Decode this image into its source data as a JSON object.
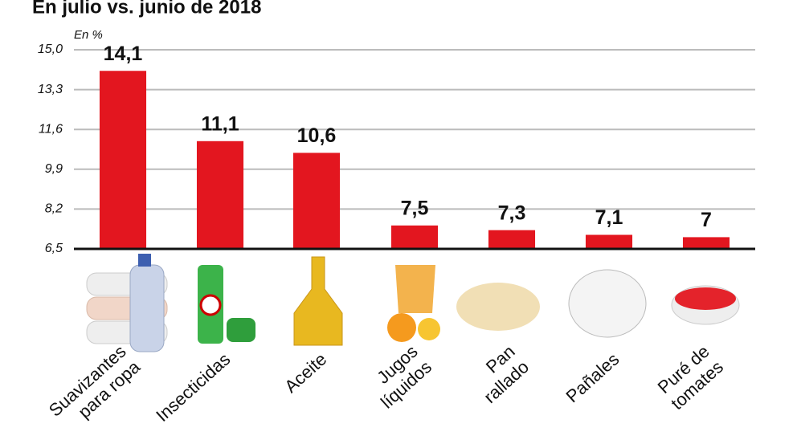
{
  "chart_data": {
    "type": "bar",
    "title": "En julio vs. junio de 2018",
    "y_label": "En %",
    "categories": [
      "Suavizantes\npara ropa",
      "Insecticidas",
      "Aceite",
      "Jugos\nlíquidos",
      "Pan\nrallado",
      "Pañales",
      "Puré de\ntomates"
    ],
    "values": [
      14.1,
      11.1,
      10.6,
      7.5,
      7.3,
      7.1,
      7
    ],
    "value_labels": [
      "14,1",
      "11,1",
      "10,6",
      "7,5",
      "7,3",
      "7,1",
      "7"
    ],
    "color": "#e3161f",
    "ylim": [
      6.5,
      15
    ],
    "yticks": [
      {
        "value": 6.5,
        "label": "6,5"
      },
      {
        "value": 8.2,
        "label": "8,2"
      },
      {
        "value": 9.9,
        "label": "9,9"
      },
      {
        "value": 11.6,
        "label": "11,6"
      },
      {
        "value": 13.3,
        "label": "13,3"
      },
      {
        "value": 15,
        "label": "15,0"
      }
    ],
    "grid": true
  }
}
